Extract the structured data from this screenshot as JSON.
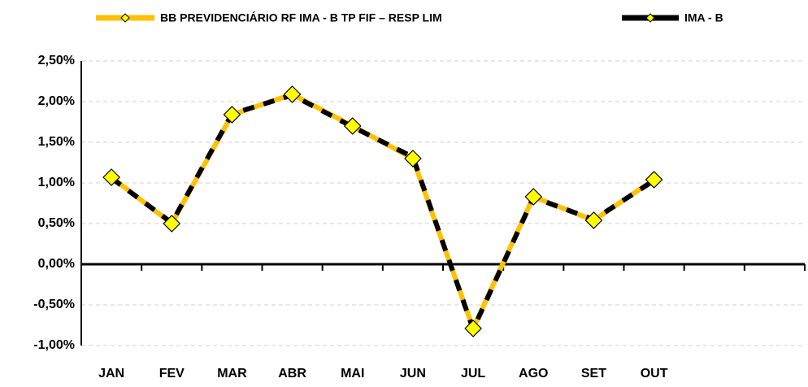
{
  "chart_data": {
    "type": "line",
    "categories": [
      "JAN",
      "FEV",
      "MAR",
      "ABR",
      "MAI",
      "JUN",
      "JUL",
      "AGO",
      "SET",
      "OUT",
      null,
      null
    ],
    "series": [
      {
        "name": "BB PREVIDENCIÁRIO RF IMA - B TP FIF – RESP LIM",
        "color": "#ffc000",
        "values": [
          1.07,
          0.5,
          1.84,
          2.09,
          1.7,
          1.3,
          -0.79,
          0.83,
          0.54,
          1.04,
          null,
          null
        ]
      },
      {
        "name": "IMA - B",
        "color": "#000000",
        "values": [
          1.06,
          0.51,
          1.85,
          2.08,
          1.69,
          1.32,
          -0.8,
          0.82,
          0.55,
          1.03,
          null,
          null
        ]
      }
    ],
    "ylim": [
      -1,
      2.5
    ],
    "yticks": [
      {
        "value": -1,
        "label": "-1,00%"
      },
      {
        "value": -0.5,
        "label": "-0,50%"
      },
      {
        "value": 0,
        "label": "0,00%"
      },
      {
        "value": 0.5,
        "label": "0,50%"
      },
      {
        "value": 1,
        "label": "1,00%"
      },
      {
        "value": 1.5,
        "label": "1,50%"
      },
      {
        "value": 2,
        "label": "2,00%"
      },
      {
        "value": 2.5,
        "label": "2,50%"
      }
    ],
    "grid": true,
    "legend": "top",
    "marker_color": "#ffff00"
  }
}
